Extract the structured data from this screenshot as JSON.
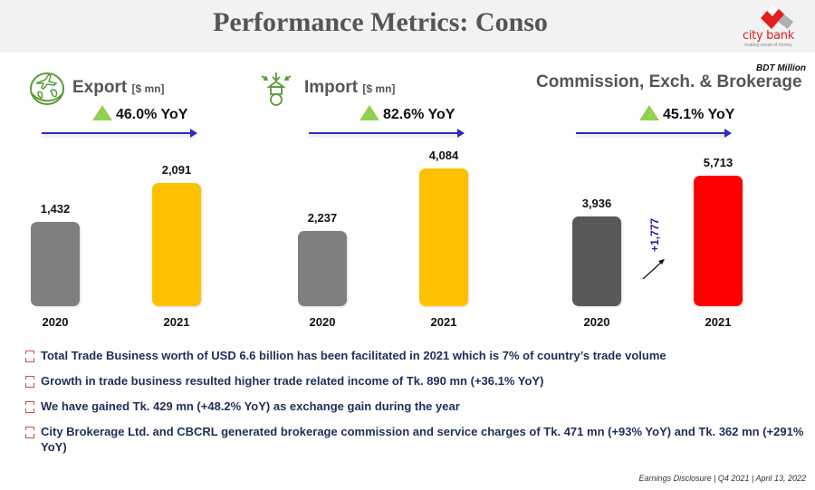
{
  "header": {
    "title": "Performance Metrics: Conso",
    "logo": {
      "name": "city bank",
      "tagline": "making sense of money"
    }
  },
  "unit_note": "BDT Million",
  "panels": [
    {
      "icon": "globe-plane-icon",
      "title": "Export",
      "unit": "[$ mn]",
      "yoy": "46.0% YoY"
    },
    {
      "icon": "import-building-icon",
      "title": "Import",
      "unit": "[$ mn]",
      "yoy": "82.6% YoY"
    },
    {
      "icon": "",
      "title": "Commission, Exch. & Brokerage",
      "unit": "",
      "yoy": "45.1% YoY",
      "delta": "+1,777"
    }
  ],
  "chart_data": [
    {
      "type": "bar",
      "title": "Export [$ mn]",
      "categories": [
        "2020",
        "2021"
      ],
      "values": [
        1432,
        2091
      ],
      "labels": [
        "1,432",
        "2,091"
      ],
      "colors": [
        "#7f7f7f",
        "#ffc000"
      ],
      "yoy": "46.0%"
    },
    {
      "type": "bar",
      "title": "Import [$ mn]",
      "categories": [
        "2020",
        "2021"
      ],
      "values": [
        2237,
        4084
      ],
      "labels": [
        "2,237",
        "4,084"
      ],
      "colors": [
        "#7f7f7f",
        "#ffc000"
      ],
      "yoy": "82.6%"
    },
    {
      "type": "bar",
      "title": "Commission, Exch. & Brokerage",
      "categories": [
        "2020",
        "2021"
      ],
      "values": [
        3936,
        5713
      ],
      "labels": [
        "3,936",
        "5,713"
      ],
      "colors": [
        "#595959",
        "#ff0000"
      ],
      "yoy": "45.1%",
      "annotation": "+1,777"
    }
  ],
  "bullets": [
    "Total Trade Business worth of USD 6.6 billion has been facilitated in 2021 which is 7% of country’s trade volume",
    "Growth in trade business resulted higher trade related income of Tk. 890 mn (+36.1% YoY)",
    "We have gained Tk. 429 mn (+48.2% YoY) as exchange gain during the year",
    "City Brokerage Ltd. and CBCRL generated brokerage commission and service charges of Tk. 471 mn (+93% YoY) and Tk. 362 mn (+291% YoY)"
  ],
  "footer": "Earnings Disclosure  |  Q4 2021  | April 13, 2022"
}
